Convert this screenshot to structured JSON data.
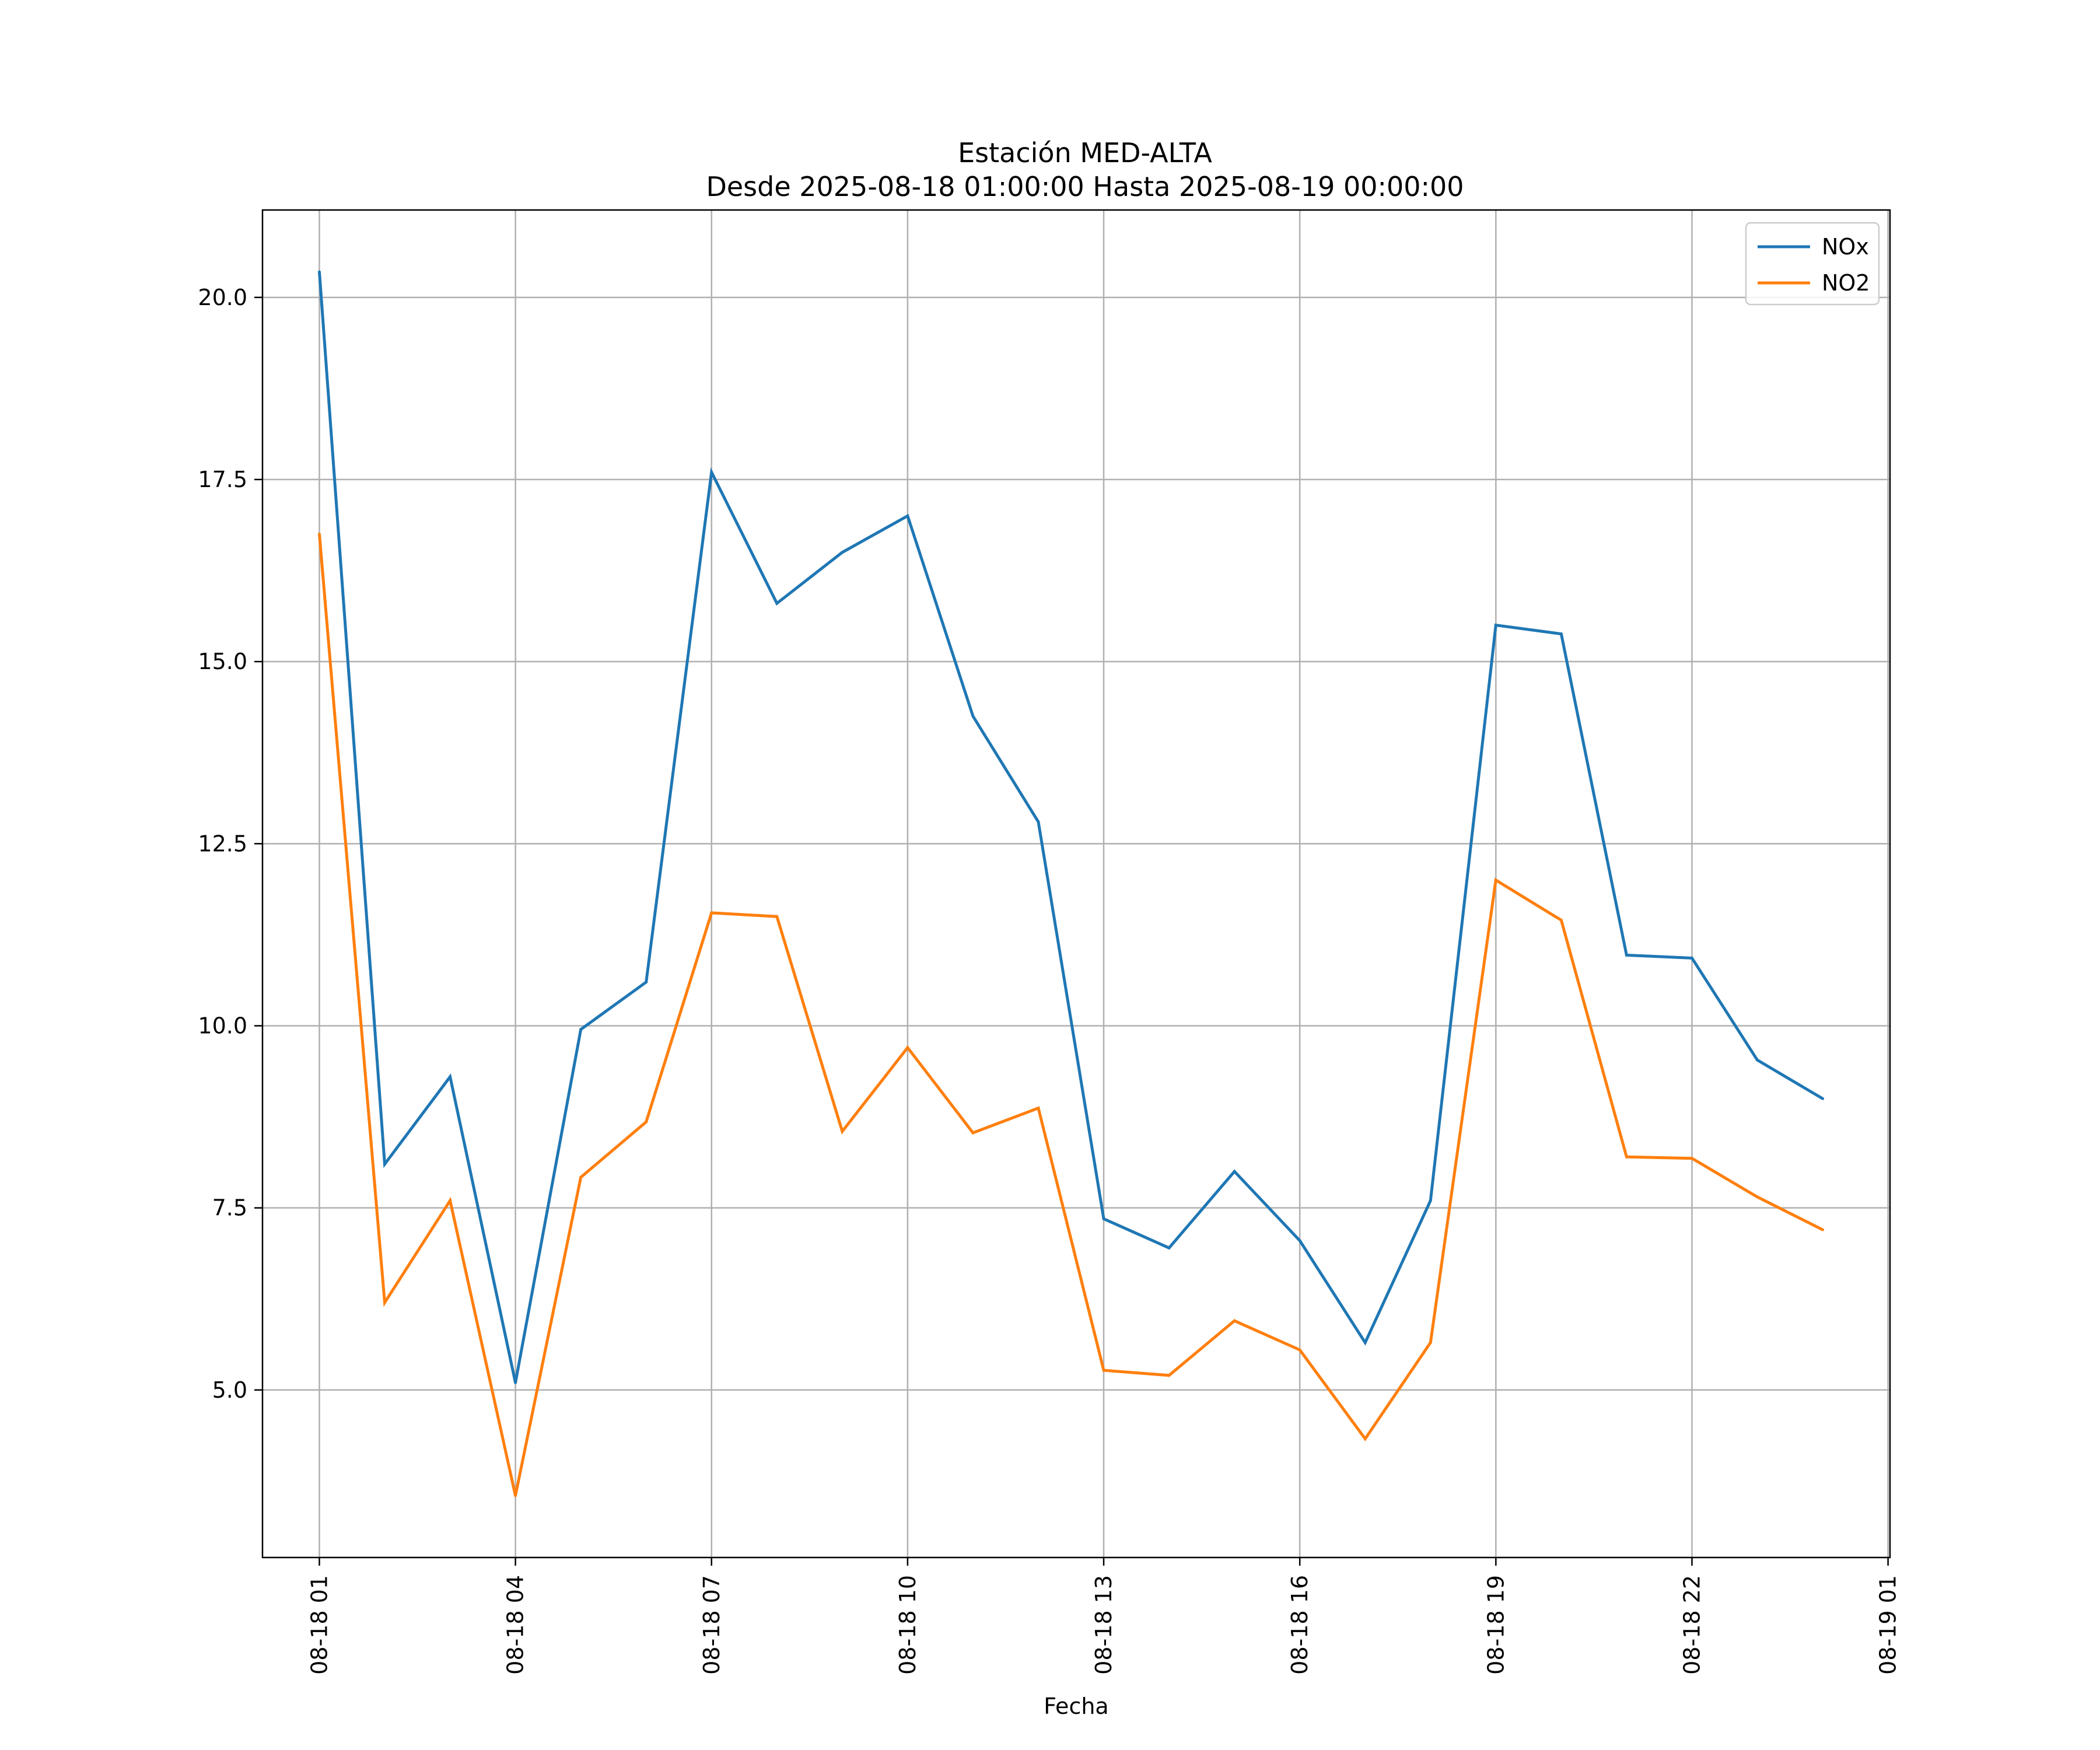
{
  "chart_data": {
    "type": "line",
    "title": "Estación MED-ALTA",
    "subtitle": "Desde 2025-08-18 01:00:00 Hasta 2025-08-19 00:00:00",
    "xlabel": "Fecha",
    "ylabel": "",
    "grid": true,
    "legend_position": "top-right",
    "x_hours": [
      1,
      2,
      3,
      4,
      5,
      6,
      7,
      8,
      9,
      10,
      11,
      12,
      13,
      14,
      15,
      16,
      17,
      18,
      19,
      20,
      21,
      22,
      23,
      24
    ],
    "xlim": [
      0.13,
      25.03
    ],
    "ylim": [
      2.7,
      21.2
    ],
    "x_ticks": [
      {
        "hour": 1,
        "label": "08-18 01"
      },
      {
        "hour": 4,
        "label": "08-18 04"
      },
      {
        "hour": 7,
        "label": "08-18 07"
      },
      {
        "hour": 10,
        "label": "08-18 10"
      },
      {
        "hour": 13,
        "label": "08-18 13"
      },
      {
        "hour": 16,
        "label": "08-18 16"
      },
      {
        "hour": 19,
        "label": "08-18 19"
      },
      {
        "hour": 22,
        "label": "08-18 22"
      },
      {
        "hour": 25,
        "label": "08-19 01"
      }
    ],
    "y_ticks": [
      {
        "value": 5.0,
        "label": "5.0"
      },
      {
        "value": 7.5,
        "label": "7.5"
      },
      {
        "value": 10.0,
        "label": "10.0"
      },
      {
        "value": 12.5,
        "label": "12.5"
      },
      {
        "value": 15.0,
        "label": "15.0"
      },
      {
        "value": 17.5,
        "label": "17.5"
      },
      {
        "value": 20.0,
        "label": "20.0"
      }
    ],
    "series": [
      {
        "name": "NOx",
        "color": "#1f77b4",
        "values": [
          20.35,
          8.1,
          9.3,
          5.1,
          9.95,
          10.6,
          17.6,
          15.8,
          16.5,
          17.0,
          14.25,
          12.8,
          7.35,
          6.95,
          8.0,
          7.05,
          5.65,
          7.6,
          15.5,
          15.38,
          10.97,
          10.93,
          9.53,
          9.0
        ]
      },
      {
        "name": "NO2",
        "color": "#ff7f0e",
        "values": [
          16.75,
          6.2,
          7.6,
          3.55,
          7.92,
          8.68,
          11.55,
          11.5,
          8.55,
          9.7,
          8.53,
          8.87,
          5.27,
          5.2,
          5.95,
          5.55,
          4.33,
          5.65,
          12.0,
          11.45,
          8.2,
          8.18,
          7.65,
          7.2
        ]
      }
    ]
  }
}
